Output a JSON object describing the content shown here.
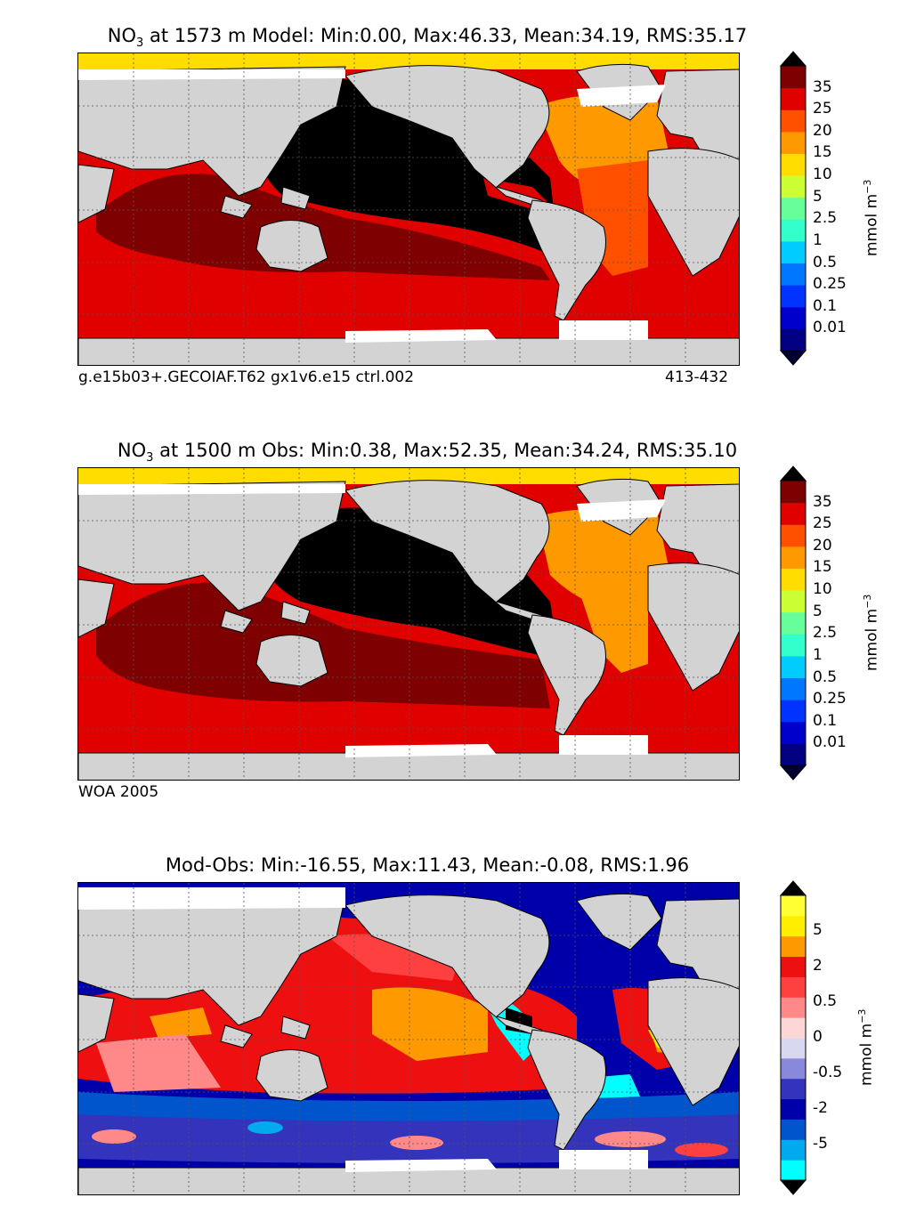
{
  "colors": {
    "land": "#d3d3d3",
    "nodata": "#ffffff",
    "coast": "#000000",
    "grid": "#555555"
  },
  "panels": [
    {
      "title_pre": "NO",
      "title_sub": "3",
      "title_post": " at 1573 m Model: Min:0.00, Max:46.33, Mean:34.19, RMS:35.17",
      "note_left": "g.e15b03+.GECOIAF.T62 gx1v6.e15 ctrl.002",
      "note_right": "413-432",
      "colorbar": {
        "labels": [
          "35",
          "25",
          "20",
          "15",
          "10",
          "5",
          "2.5",
          "1",
          "0.5",
          "0.25",
          "0.1",
          "0.01"
        ],
        "colors": [
          "#000080",
          "#0000cc",
          "#0033ff",
          "#0077ff",
          "#00ccff",
          "#33ffcc",
          "#66ff99",
          "#ccff33",
          "#ffdd00",
          "#ff9900",
          "#ff5000",
          "#e00000",
          "#7f0000"
        ],
        "extend_low": "#000033",
        "extend_high": "#000000",
        "unit": "mmol m",
        "unit_sup": "−3"
      }
    },
    {
      "title_pre": "NO",
      "title_sub": "3",
      "title_post": " at 1500 m Obs: Min:0.38, Max:52.35, Mean:34.24, RMS:35.10",
      "note_left": "WOA 2005",
      "note_right": "",
      "colorbar": {
        "labels": [
          "35",
          "25",
          "20",
          "15",
          "10",
          "5",
          "2.5",
          "1",
          "0.5",
          "0.25",
          "0.1",
          "0.01"
        ],
        "colors": [
          "#000080",
          "#0000cc",
          "#0033ff",
          "#0077ff",
          "#00ccff",
          "#33ffcc",
          "#66ff99",
          "#ccff33",
          "#ffdd00",
          "#ff9900",
          "#ff5000",
          "#e00000",
          "#7f0000"
        ],
        "extend_low": "#000033",
        "extend_high": "#000000",
        "unit": "mmol m",
        "unit_sup": "−3"
      }
    },
    {
      "title_pre": "Mod-Obs: Min:-16.55, Max:11.43, Mean:-0.08, RMS:1.96",
      "title_sub": "",
      "title_post": "",
      "note_left": "",
      "note_right": "",
      "colorbar": {
        "labels": [
          "5",
          "2",
          "0.5",
          "0",
          "-0.5",
          "-2",
          "-5"
        ],
        "colors": [
          "#00ffff",
          "#00aaee",
          "#0055cc",
          "#0000aa",
          "#3333bb",
          "#8888dd",
          "#d8d8f0",
          "#ffd6d6",
          "#ff8888",
          "#ff4040",
          "#ee1010",
          "#ff9900",
          "#ffee00",
          "#ffff33"
        ],
        "extend_low": "#000000",
        "extend_high": "#000000",
        "unit": "mmol m",
        "unit_sup": "−3"
      }
    }
  ]
}
